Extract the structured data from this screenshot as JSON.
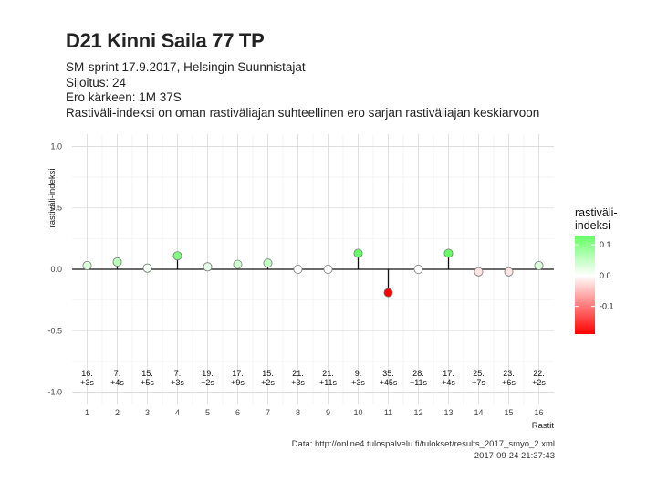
{
  "header": {
    "title": "D21 Kinni Saila 77 TP",
    "subtitle_lines": [
      "SM-sprint 17.9.2017, Helsingin Suunnistajat",
      "Sijoitus: 24",
      "Ero kärkeen: 1M 37S",
      "Rastiväli-indeksi on oman rastiväliajan suhteellinen ero sarjan rastiväliajan keskiarvoon"
    ]
  },
  "caption": {
    "source": "Data: http://online4.tulospalvelu.fi/tulokset/results_2017_smyo_2.xml",
    "timestamp": "2017-09-24 21:37:43"
  },
  "chart_data": {
    "type": "scatter",
    "xlabel": "Rastit",
    "ylabel": "rastiväli-indeksi",
    "ylim": [
      -1.0,
      1.0
    ],
    "y_ticks": [
      1.0,
      0.5,
      0.0,
      -0.5,
      -1.0
    ],
    "y_tick_labels": [
      "1.0",
      "0.5",
      "0.0",
      "-0.5",
      "-1.0"
    ],
    "grid": true,
    "x": [
      1,
      2,
      3,
      4,
      5,
      6,
      7,
      8,
      9,
      10,
      11,
      12,
      13,
      14,
      15,
      16
    ],
    "x_tick_labels": [
      "1",
      "2",
      "3",
      "4",
      "5",
      "6",
      "7",
      "8",
      "9",
      "10",
      "11",
      "12",
      "13",
      "14",
      "15",
      "16"
    ],
    "values": [
      0.03,
      0.06,
      0.01,
      0.11,
      0.02,
      0.04,
      0.05,
      0.0,
      0.0,
      0.13,
      -0.19,
      0.0,
      0.13,
      -0.02,
      -0.02,
      0.03
    ],
    "point_labels": [
      [
        "16.",
        "+3s"
      ],
      [
        "7.",
        "+4s"
      ],
      [
        "15.",
        "+5s"
      ],
      [
        "7.",
        "+3s"
      ],
      [
        "19.",
        "+2s"
      ],
      [
        "17.",
        "+9s"
      ],
      [
        "15.",
        "+2s"
      ],
      [
        "21.",
        "+3s"
      ],
      [
        "21.",
        "+11s"
      ],
      [
        "9.",
        "+3s"
      ],
      [
        "35.",
        "+45s"
      ],
      [
        "28.",
        "+11s"
      ],
      [
        "17.",
        "+4s"
      ],
      [
        "25.",
        "+7s"
      ],
      [
        "23.",
        "+6s"
      ],
      [
        "22.",
        "+2s"
      ]
    ],
    "label_y": -0.92,
    "legend": {
      "title_lines": [
        "rastiväli-",
        "indeksi"
      ],
      "placement": "right",
      "range": [
        -0.19,
        0.13
      ],
      "ticks": [
        0.1,
        0.0,
        -0.1
      ],
      "tick_labels": [
        "0.1",
        "0.0",
        "-0.1"
      ],
      "colors": {
        "high": "#66ff66",
        "mid": "#ffffff",
        "low": "#ff0000"
      }
    }
  }
}
